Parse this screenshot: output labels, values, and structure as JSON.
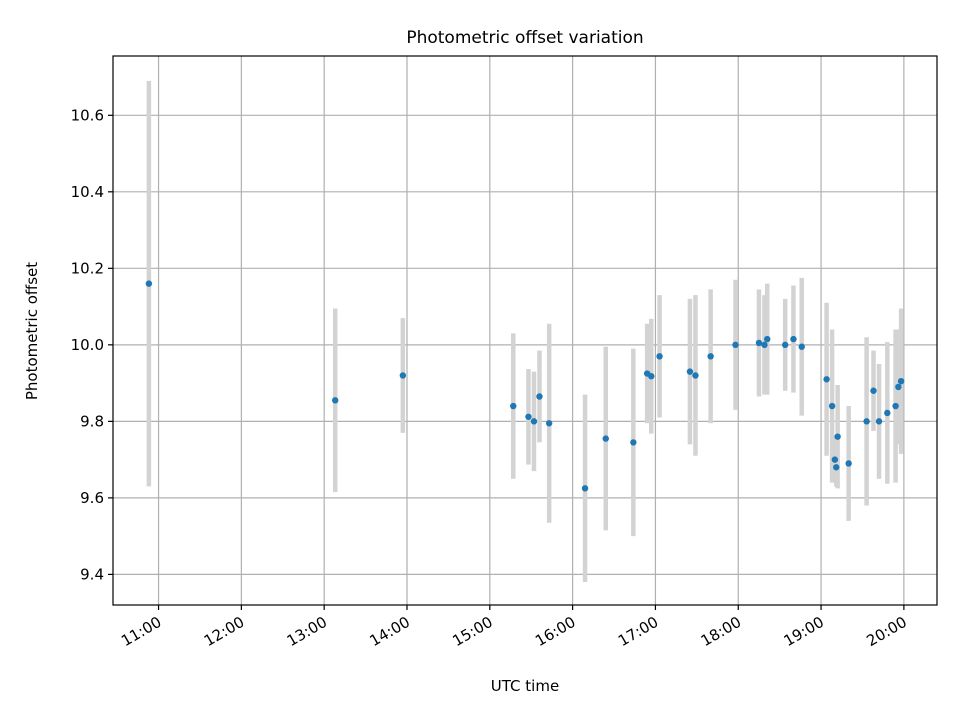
{
  "chart_data": {
    "type": "scatter",
    "title": "Photometric offset variation",
    "xlabel": "UTC time",
    "ylabel": "Photometric offset",
    "x_ticks": [
      "11:00",
      "12:00",
      "13:00",
      "14:00",
      "15:00",
      "16:00",
      "17:00",
      "18:00",
      "19:00",
      "20:00"
    ],
    "y_ticks": [
      "9.4",
      "9.6",
      "9.8",
      "10.0",
      "10.2",
      "10.4",
      "10.6"
    ],
    "xlim": [
      "10:27",
      "20:24"
    ],
    "ylim": [
      9.32,
      10.755
    ],
    "grid": true,
    "colors": {
      "point": "#1f77b4",
      "errorbar": "#d3d3d3",
      "grid": "#b0b0b0"
    },
    "points": [
      {
        "time": "10:53",
        "y": 10.16,
        "err": 0.53
      },
      {
        "time": "13:08",
        "y": 9.855,
        "err": 0.24
      },
      {
        "time": "13:57",
        "y": 9.92,
        "err": 0.15
      },
      {
        "time": "15:17",
        "y": 9.84,
        "err": 0.19
      },
      {
        "time": "15:28",
        "y": 9.812,
        "err": 0.125
      },
      {
        "time": "15:32",
        "y": 9.8,
        "err": 0.13
      },
      {
        "time": "15:36",
        "y": 9.865,
        "err": 0.12
      },
      {
        "time": "15:43",
        "y": 9.795,
        "err": 0.26
      },
      {
        "time": "16:09",
        "y": 9.625,
        "err": 0.245
      },
      {
        "time": "16:24",
        "y": 9.755,
        "err": 0.24
      },
      {
        "time": "16:44",
        "y": 9.745,
        "err": 0.245
      },
      {
        "time": "16:54",
        "y": 9.925,
        "err": 0.13
      },
      {
        "time": "16:57",
        "y": 9.918,
        "err": 0.15
      },
      {
        "time": "17:03",
        "y": 9.97,
        "err": 0.16
      },
      {
        "time": "17:25",
        "y": 9.93,
        "err": 0.19
      },
      {
        "time": "17:29",
        "y": 9.92,
        "err": 0.21
      },
      {
        "time": "17:40",
        "y": 9.97,
        "err": 0.175
      },
      {
        "time": "17:58",
        "y": 10.0,
        "err": 0.17
      },
      {
        "time": "18:15",
        "y": 10.005,
        "err": 0.14
      },
      {
        "time": "18:19",
        "y": 10.0,
        "err": 0.13
      },
      {
        "time": "18:21",
        "y": 10.015,
        "err": 0.145
      },
      {
        "time": "18:34",
        "y": 10.0,
        "err": 0.12
      },
      {
        "time": "18:40",
        "y": 10.015,
        "err": 0.14
      },
      {
        "time": "18:46",
        "y": 9.995,
        "err": 0.18
      },
      {
        "time": "19:04",
        "y": 9.91,
        "err": 0.2
      },
      {
        "time": "19:08",
        "y": 9.84,
        "err": 0.2
      },
      {
        "time": "19:10",
        "y": 9.7,
        "err": 0.06
      },
      {
        "time": "19:11",
        "y": 9.68,
        "err": 0.05
      },
      {
        "time": "19:12",
        "y": 9.76,
        "err": 0.135
      },
      {
        "time": "19:20",
        "y": 9.69,
        "err": 0.15
      },
      {
        "time": "19:33",
        "y": 9.8,
        "err": 0.22
      },
      {
        "time": "19:38",
        "y": 9.88,
        "err": 0.105
      },
      {
        "time": "19:42",
        "y": 9.8,
        "err": 0.15
      },
      {
        "time": "19:48",
        "y": 9.822,
        "err": 0.185
      },
      {
        "time": "19:54",
        "y": 9.84,
        "err": 0.2
      },
      {
        "time": "19:56",
        "y": 9.89,
        "err": 0.15
      },
      {
        "time": "19:58",
        "y": 9.905,
        "err": 0.19
      }
    ]
  }
}
